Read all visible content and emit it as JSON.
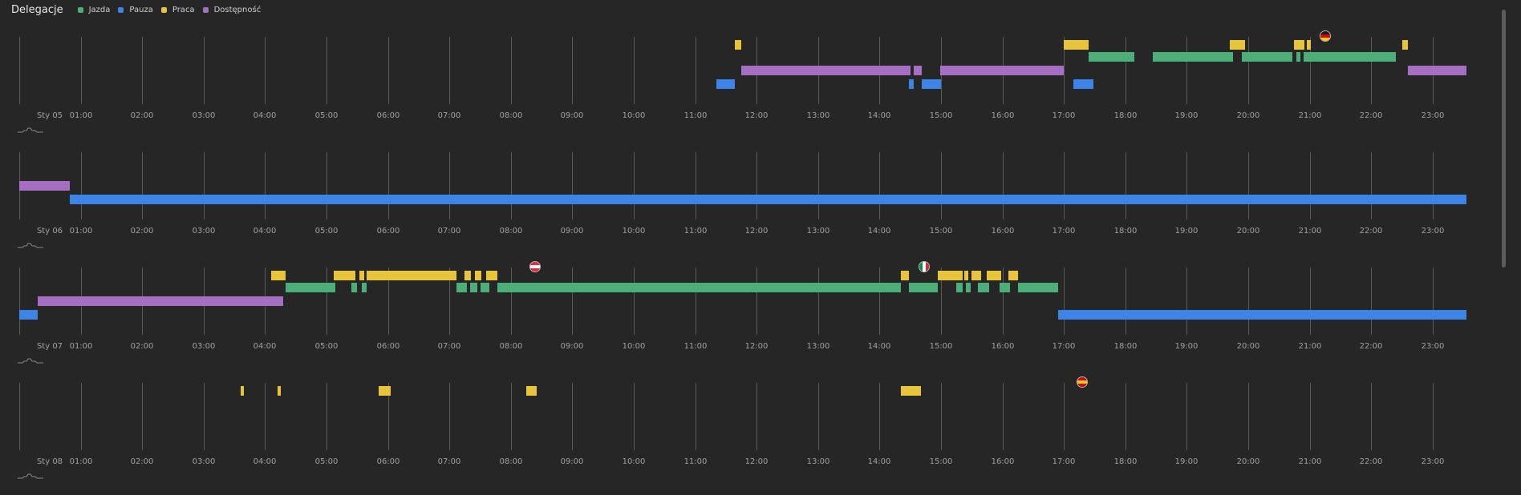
{
  "header": {
    "title": "Delegacje",
    "legend": [
      {
        "key": "drive",
        "label": "Jazda",
        "color": "#4caf7a"
      },
      {
        "key": "pause",
        "label": "Pauza",
        "color": "#3d84e8"
      },
      {
        "key": "work",
        "label": "Praca",
        "color": "#e8c33c"
      },
      {
        "key": "avail",
        "label": "Dostępność",
        "color": "#a66fc4"
      }
    ]
  },
  "hours": [
    "01:00",
    "02:00",
    "03:00",
    "04:00",
    "05:00",
    "06:00",
    "07:00",
    "08:00",
    "09:00",
    "10:00",
    "11:00",
    "12:00",
    "13:00",
    "14:00",
    "15:00",
    "16:00",
    "17:00",
    "18:00",
    "19:00",
    "20:00",
    "21:00",
    "22:00",
    "23:00"
  ],
  "days": [
    {
      "label": "Sty 05",
      "segments": {
        "work": [
          [
            11.65,
            11.75
          ],
          [
            17.0,
            17.4
          ],
          [
            19.7,
            19.95
          ],
          [
            20.75,
            20.92
          ],
          [
            20.95,
            21.02
          ],
          [
            22.5,
            22.6
          ]
        ],
        "drive": [
          [
            17.4,
            18.15
          ],
          [
            18.45,
            19.75
          ],
          [
            19.9,
            20.72
          ],
          [
            20.78,
            20.85
          ],
          [
            20.9,
            22.4
          ]
        ],
        "avail": [
          [
            11.75,
            14.5
          ],
          [
            14.55,
            14.68
          ],
          [
            14.98,
            17.0
          ],
          [
            22.6,
            23.55
          ]
        ],
        "pause": [
          [
            11.35,
            11.65
          ],
          [
            14.48,
            14.56
          ],
          [
            14.68,
            15.0
          ],
          [
            17.15,
            17.48
          ]
        ]
      },
      "flags": [
        {
          "country": "de",
          "time": 21.25
        }
      ]
    },
    {
      "label": "Sty 06",
      "segments": {
        "work": [],
        "drive": [],
        "avail": [
          [
            0.0,
            0.82
          ]
        ],
        "pause": [
          [
            0.82,
            23.55
          ]
        ]
      },
      "flags": []
    },
    {
      "label": "Sty 07",
      "segments": {
        "work": [
          [
            4.1,
            4.33
          ],
          [
            5.12,
            5.47
          ],
          [
            5.53,
            5.62
          ],
          [
            5.65,
            7.12
          ],
          [
            7.25,
            7.35
          ],
          [
            7.42,
            7.52
          ],
          [
            7.6,
            7.78
          ],
          [
            14.35,
            14.48
          ],
          [
            14.95,
            15.35
          ],
          [
            15.38,
            15.45
          ],
          [
            15.5,
            15.65
          ],
          [
            15.75,
            15.98
          ],
          [
            16.1,
            16.25
          ]
        ],
        "drive": [
          [
            4.33,
            5.15
          ],
          [
            5.4,
            5.5
          ],
          [
            5.58,
            5.65
          ],
          [
            7.12,
            7.28
          ],
          [
            7.33,
            7.45
          ],
          [
            7.5,
            7.65
          ],
          [
            7.78,
            14.35
          ],
          [
            14.48,
            14.95
          ],
          [
            15.25,
            15.35
          ],
          [
            15.4,
            15.48
          ],
          [
            15.6,
            15.78
          ],
          [
            15.95,
            16.12
          ],
          [
            16.25,
            16.9
          ]
        ],
        "avail": [
          [
            0.3,
            4.3
          ]
        ],
        "pause": [
          [
            0.0,
            0.3
          ],
          [
            16.9,
            23.55
          ]
        ]
      },
      "flags": [
        {
          "country": "at",
          "time": 8.4
        },
        {
          "country": "it",
          "time": 14.72
        }
      ]
    },
    {
      "label": "Sty 08",
      "segments": {
        "work": [
          [
            3.6,
            3.65
          ],
          [
            4.2,
            4.26
          ],
          [
            5.85,
            6.05
          ],
          [
            8.25,
            8.42
          ],
          [
            14.35,
            14.68
          ]
        ],
        "drive": [],
        "avail": [],
        "pause": []
      },
      "flags": [
        {
          "country": "es",
          "time": 17.3
        }
      ]
    }
  ],
  "flag_colors": {
    "de": [
      "#1a1a1a",
      "#dd0000",
      "#ffce00"
    ],
    "at": [
      "#ed2939",
      "#ffffff",
      "#ed2939"
    ],
    "it": [
      "#009246",
      "#ffffff",
      "#ce2b37"
    ],
    "es": [
      "#c60b1e",
      "#ffc400",
      "#c60b1e"
    ]
  }
}
